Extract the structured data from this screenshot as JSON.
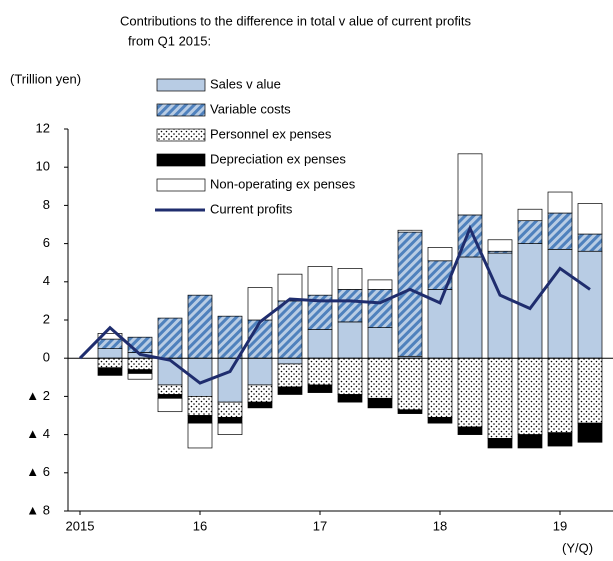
{
  "chart_data": {
    "type": "bar",
    "title": [
      "Contributions to the difference  in total  v alue of current profits",
      "from Q1 2015:"
    ],
    "y_label": "(Trillion yen)",
    "x_label": "(Y/Q)",
    "categories": [
      "2015",
      null,
      null,
      null,
      "16",
      null,
      null,
      null,
      "17",
      null,
      null,
      null,
      "18",
      null,
      null,
      null,
      "19",
      null
    ],
    "series": [
      {
        "name": "Sales v alue",
        "color": "#b8cce4",
        "style": "solid",
        "values": [
          null,
          0.5,
          0.3,
          -1.4,
          -2.0,
          -2.3,
          -1.4,
          -0.3,
          1.5,
          1.9,
          1.6,
          0.1,
          3.6,
          5.3,
          5.5,
          6.0,
          5.7,
          5.6
        ]
      },
      {
        "name": "Variable costs",
        "color": "#4f81bd",
        "style": "hatch",
        "values": [
          null,
          0.5,
          0.8,
          2.1,
          3.3,
          2.2,
          2.0,
          3.0,
          1.8,
          1.7,
          2.0,
          6.5,
          1.5,
          2.2,
          0.1,
          1.2,
          1.9,
          0.9
        ]
      },
      {
        "name": "Personnel ex penses",
        "color": "#000000",
        "style": "dots",
        "values": [
          null,
          -0.5,
          -0.6,
          -0.5,
          -1.0,
          -0.8,
          -0.9,
          -1.2,
          -1.4,
          -1.9,
          -2.1,
          -2.7,
          -3.1,
          -3.6,
          -4.2,
          -4.0,
          -3.9,
          -3.4
        ]
      },
      {
        "name": "Depreciation ex penses",
        "color": "#000000",
        "style": "solid",
        "values": [
          null,
          -0.4,
          -0.2,
          -0.2,
          -0.4,
          -0.3,
          -0.3,
          -0.4,
          -0.4,
          -0.4,
          -0.5,
          -0.2,
          -0.3,
          -0.4,
          -0.5,
          -0.7,
          -0.7,
          -1.0
        ]
      },
      {
        "name": "Non-operating ex penses",
        "color": "#ffffff",
        "style": "solid",
        "values": [
          null,
          0.3,
          -0.3,
          -0.7,
          -1.3,
          -0.6,
          1.7,
          1.4,
          1.5,
          1.1,
          0.5,
          0.1,
          0.7,
          3.2,
          0.6,
          0.6,
          1.1,
          1.6
        ]
      },
      {
        "name": "Current profits",
        "color": "#1f2d6e",
        "style": "line",
        "values": [
          0,
          1.6,
          0.2,
          -0.1,
          -1.3,
          -0.7,
          1.9,
          3.1,
          3.0,
          3.0,
          2.9,
          3.6,
          2.9,
          6.8,
          3.3,
          2.6,
          4.7,
          3.6
        ]
      }
    ],
    "ylim": [
      -8,
      12
    ],
    "yticks": [
      {
        "value": -8,
        "label": "▲ 8"
      },
      {
        "value": -6,
        "label": "▲ 6"
      },
      {
        "value": -4,
        "label": "▲ 4"
      },
      {
        "value": -2,
        "label": "▲ 2"
      },
      0,
      2,
      4,
      6,
      8,
      10,
      12
    ]
  }
}
